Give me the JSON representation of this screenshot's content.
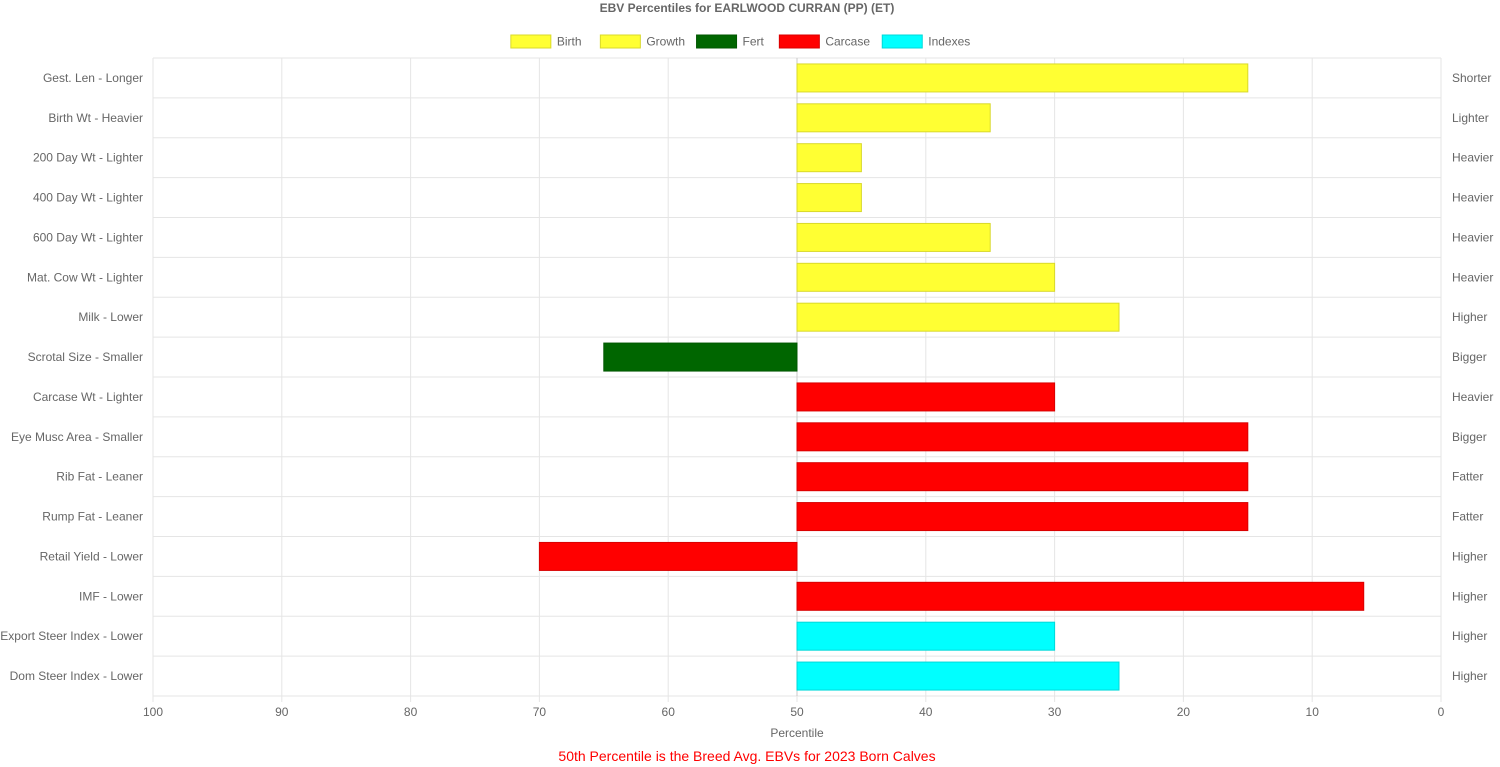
{
  "chart_data": {
    "type": "bar",
    "orientation": "horizontal",
    "title": "EBV Percentiles for EARLWOOD CURRAN (PP) (ET)",
    "xlabel": "Percentile",
    "xlim": [
      100,
      0
    ],
    "x_ticks": [
      "100",
      "90",
      "80",
      "70",
      "60",
      "50",
      "40",
      "30",
      "20",
      "10",
      "0"
    ],
    "baseline": 50,
    "grid": true,
    "legend_position": "top",
    "legend": [
      {
        "name": "Birth",
        "color": "#ffff33"
      },
      {
        "name": "Growth",
        "color": "#ffff33"
      },
      {
        "name": "Fert",
        "color": "#006600"
      },
      {
        "name": "Carcase",
        "color": "#ff0000"
      },
      {
        "name": "Indexes",
        "color": "#00ffff"
      }
    ],
    "categories": [
      "Gest. Len - Longer",
      "Birth Wt - Heavier",
      "200 Day Wt - Lighter",
      "400 Day Wt - Lighter",
      "600 Day Wt - Lighter",
      "Mat. Cow Wt - Lighter",
      "Milk - Lower",
      "Scrotal Size - Smaller",
      "Carcase Wt - Lighter",
      "Eye Musc Area - Smaller",
      "Rib Fat - Leaner",
      "Rump Fat - Leaner",
      "Retail Yield - Lower",
      "IMF - Lower",
      "Export Steer Index - Lower",
      "Dom Steer Index - Lower"
    ],
    "right_labels": [
      "Shorter",
      "Lighter",
      "Heavier",
      "Heavier",
      "Heavier",
      "Heavier",
      "Higher",
      "Bigger",
      "Heavier",
      "Bigger",
      "Fatter",
      "Fatter",
      "Higher",
      "Higher",
      "Higher",
      "Higher"
    ],
    "values": [
      15,
      35,
      45,
      45,
      35,
      30,
      25,
      65,
      30,
      15,
      15,
      15,
      70,
      6,
      30,
      25
    ],
    "groups": [
      "Birth",
      "Birth",
      "Growth",
      "Growth",
      "Growth",
      "Growth",
      "Growth",
      "Fert",
      "Carcase",
      "Carcase",
      "Carcase",
      "Carcase",
      "Carcase",
      "Carcase",
      "Indexes",
      "Indexes"
    ],
    "footnote": "50th Percentile is the Breed Avg. EBVs for 2023 Born Calves"
  }
}
